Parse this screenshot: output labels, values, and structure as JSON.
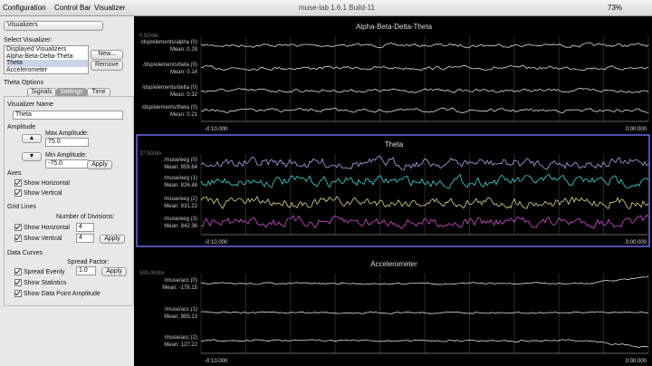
{
  "menubar": {
    "items": [
      "Configuration",
      "Control Bar",
      "Visualizer"
    ],
    "window_title": "muse-lab 1.6.1 Build-11",
    "battery": "73%"
  },
  "sidebar": {
    "select_label": "Select Visualizer:",
    "dropdown": "Visualizers",
    "list": [
      "Displayed Visualizers",
      "Alpha-Beta-Delta-Theta",
      "Theta",
      "Accelerometer"
    ],
    "new_button": "New...",
    "remove_button": "Remove",
    "options_title": "Theta Options",
    "tabs": [
      "Signals",
      "Settings",
      "Time"
    ],
    "name_label": "Visualizer Name",
    "name_value": "Theta",
    "amplitude": {
      "title": "Amplitude",
      "max_label": "Max Amplitude:",
      "max_value": "75.0",
      "min_label": "Min Amplitude:",
      "min_value": "-75.0",
      "apply": "Apply"
    },
    "axes": {
      "title": "Axes",
      "horizontal": "Show Horizontal",
      "vertical": "Show Vertical"
    },
    "grid": {
      "title": "Grid Lines",
      "divisions_label": "Number of Divisions:",
      "horizontal": "Show Horizontal",
      "horizontal_value": "4",
      "vertical": "Show Vertical",
      "vertical_value": "4",
      "apply": "Apply"
    },
    "curves": {
      "title": "Data Curves",
      "spread_label": "Spread Factor:",
      "spread_evenly": "Spread Evenly",
      "spread_value": "1.0",
      "apply": "Apply",
      "statistics": "Show Statistics",
      "amplitude": "Show Data Point Amplitude"
    }
  },
  "panels": [
    {
      "title": "Alpha-Beta-Delta-Theta",
      "scale": "0.50/div",
      "x_start": "-0:10.000",
      "x_end": "0:00.000",
      "channels": [
        {
          "name": "/dsp/elements/alpha (0)",
          "mean": "Mean: 0.28"
        },
        {
          "name": "/dsp/elements/beta (0)",
          "mean": "Mean: 0.14"
        },
        {
          "name": "/dsp/elements/delta (0)",
          "mean": "Mean: 0.32"
        },
        {
          "name": "/dsp/elements/theta (0)",
          "mean": "Mean: 0.21"
        }
      ]
    },
    {
      "title": "Theta",
      "scale": "37.50/div",
      "x_start": "-0:10.000",
      "x_end": "0:00.000",
      "channels": [
        {
          "name": "/muse/eeg (0)",
          "mean": "Mean: 859.64"
        },
        {
          "name": "/muse/eeg (1)",
          "mean": "Mean: 826.48"
        },
        {
          "name": "/muse/eeg (2)",
          "mean": "Mean: 831.22"
        },
        {
          "name": "/muse/eeg (3)",
          "mean": "Mean: 842.36"
        }
      ]
    },
    {
      "title": "Accelerometer",
      "scale": "500.00/div",
      "x_start": "-0:10.000",
      "x_end": "0:00.000",
      "channels": [
        {
          "name": "/muse/acc (0)",
          "mean": "Mean: -178.15"
        },
        {
          "name": "/muse/acc (1)",
          "mean": "Mean: 985.13"
        },
        {
          "name": "/muse/acc (2)",
          "mean": "Mean: 127.22"
        }
      ]
    }
  ]
}
